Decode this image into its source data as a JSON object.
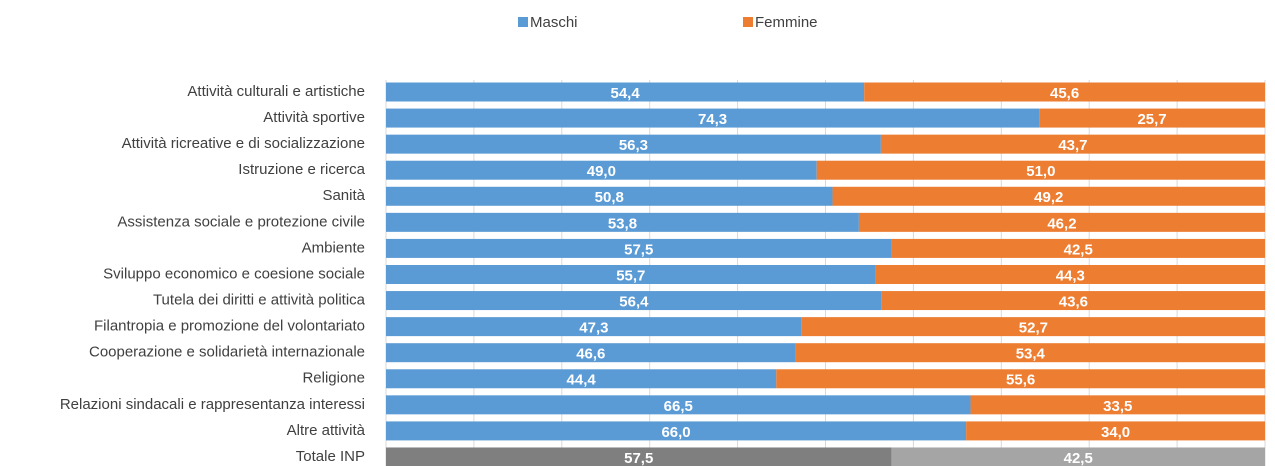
{
  "chart_data": {
    "type": "stacked-bar-horizontal",
    "categories": [
      "Attività culturali e artistiche",
      "Attività sportive",
      "Attività ricreative e di socializzazione",
      "Istruzione e ricerca",
      "Sanità",
      "Assistenza sociale e protezione civile",
      "Ambiente",
      "Sviluppo economico e coesione sociale",
      "Tutela dei diritti e attività politica",
      "Filantropia e promozione del volontariato",
      "Cooperazione e solidarietà internazionale",
      "Religione",
      "Relazioni sindacali e rappresentanza interessi",
      "Altre attività",
      "Totale INP"
    ],
    "series": [
      {
        "name": "Maschi",
        "color": "#5b9bd5",
        "colors": [
          "#5b9bd5",
          "#5b9bd5",
          "#5b9bd5",
          "#5b9bd5",
          "#5b9bd5",
          "#5b9bd5",
          "#5b9bd5",
          "#5b9bd5",
          "#5b9bd5",
          "#5b9bd5",
          "#5b9bd5",
          "#5b9bd5",
          "#5b9bd5",
          "#5b9bd5",
          "#7f7f7f"
        ],
        "values": [
          54.4,
          74.3,
          56.3,
          49.0,
          50.8,
          53.8,
          57.5,
          55.7,
          56.4,
          47.3,
          46.6,
          44.4,
          66.5,
          66.0,
          57.5
        ],
        "value_labels": [
          "54,4",
          "74,3",
          "56,3",
          "49,0",
          "50,8",
          "53,8",
          "57,5",
          "55,7",
          "56,4",
          "47,3",
          "46,6",
          "44,4",
          "66,5",
          "66,0",
          "57,5"
        ]
      },
      {
        "name": "Femmine",
        "color": "#ed7d31",
        "colors": [
          "#ed7d31",
          "#ed7d31",
          "#ed7d31",
          "#ed7d31",
          "#ed7d31",
          "#ed7d31",
          "#ed7d31",
          "#ed7d31",
          "#ed7d31",
          "#ed7d31",
          "#ed7d31",
          "#ed7d31",
          "#ed7d31",
          "#ed7d31",
          "#a5a5a5"
        ],
        "values": [
          45.6,
          25.7,
          43.7,
          51.0,
          49.2,
          46.2,
          42.5,
          44.3,
          43.6,
          52.7,
          53.4,
          55.6,
          33.5,
          34.0,
          42.5
        ],
        "value_labels": [
          "45,6",
          "25,7",
          "43,7",
          "51,0",
          "49,2",
          "46,2",
          "42,5",
          "44,3",
          "43,6",
          "52,7",
          "53,4",
          "55,6",
          "33,5",
          "34,0",
          "42,5"
        ]
      }
    ],
    "xlim": [
      0,
      100
    ],
    "xticks": [
      0,
      10,
      20,
      30,
      40,
      50,
      60,
      70,
      80,
      90,
      100
    ],
    "grid": true,
    "legend": "top"
  }
}
